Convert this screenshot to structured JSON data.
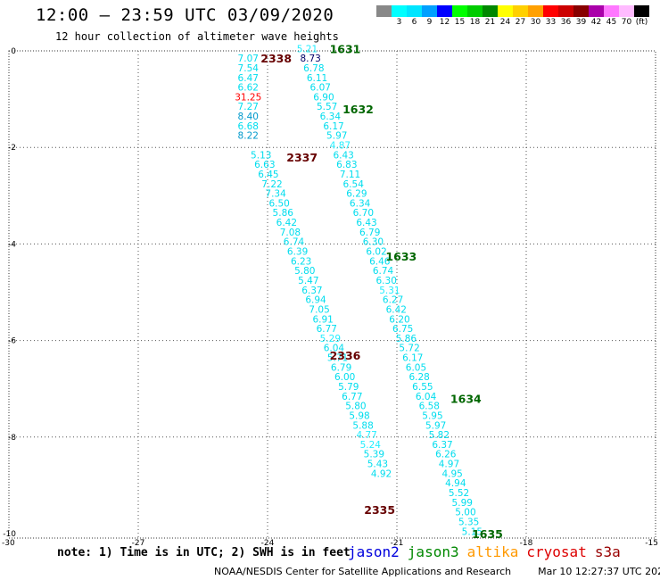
{
  "header": {
    "title": "12:00 — 23:59 UTC 03/09/2020",
    "subtitle": "12 hour collection of altimeter wave heights"
  },
  "legend": {
    "unit": "(ft)",
    "swatches": [
      {
        "color": "#888888",
        "label": ""
      },
      {
        "color": "#00ffff",
        "label": "3"
      },
      {
        "color": "#00e5ff",
        "label": "6"
      },
      {
        "color": "#00a0ff",
        "label": "9"
      },
      {
        "color": "#0000ff",
        "label": "12"
      },
      {
        "color": "#00ff00",
        "label": "15"
      },
      {
        "color": "#00cc00",
        "label": "18"
      },
      {
        "color": "#008800",
        "label": "21"
      },
      {
        "color": "#ffff00",
        "label": "24"
      },
      {
        "color": "#ffd000",
        "label": "27"
      },
      {
        "color": "#ffa000",
        "label": "30"
      },
      {
        "color": "#ff0000",
        "label": "33"
      },
      {
        "color": "#cc0000",
        "label": "36"
      },
      {
        "color": "#880000",
        "label": "39"
      },
      {
        "color": "#aa00aa",
        "label": "42"
      },
      {
        "color": "#ff77ff",
        "label": "45"
      },
      {
        "color": "#ffbbff",
        "label": "70"
      },
      {
        "color": "#000000",
        "label": ""
      }
    ]
  },
  "axes": {
    "x_ticks": [
      "-30",
      "-27",
      "-24",
      "-21",
      "-18",
      "-15"
    ],
    "y_ticks": [
      "0",
      "-2",
      "-4",
      "-6",
      "-8",
      "-10"
    ],
    "lon_range": [
      -30,
      -15
    ],
    "lat_range": [
      -10,
      0
    ]
  },
  "colors": {
    "cyan": "#00ddee",
    "light_cyan": "#22eeff",
    "dark_cyan": "#0099cc",
    "red": "#ff0000",
    "dark_red": "#660000",
    "green": "#006600",
    "navy": "#000066",
    "grid": "#555555"
  },
  "passes": [
    {
      "label": "2338",
      "color": "#660000",
      "lon": -23.8,
      "lat": -0.15
    },
    {
      "label": "1631",
      "color": "#006600",
      "lon": -22.2,
      "lat": 0.05
    },
    {
      "label": "1632",
      "color": "#006600",
      "lon": -21.9,
      "lat": -1.2
    },
    {
      "label": "2337",
      "color": "#660000",
      "lon": -23.2,
      "lat": -2.2
    },
    {
      "label": "1633",
      "color": "#006600",
      "lon": -20.9,
      "lat": -4.25
    },
    {
      "label": "2336",
      "color": "#660000",
      "lon": -22.2,
      "lat": -6.3
    },
    {
      "label": "1634",
      "color": "#006600",
      "lon": -19.4,
      "lat": -7.2
    },
    {
      "label": "2335",
      "color": "#660000",
      "lon": -21.4,
      "lat": -9.5
    },
    {
      "label": "1635",
      "color": "#006600",
      "lon": -18.9,
      "lat": -10.0
    }
  ],
  "tracks": [
    {
      "name": "2338",
      "start": [
        -24.45,
        -0.15
      ],
      "step": [
        0.0,
        -0.2
      ],
      "values": [
        {
          "v": "7.07",
          "c": "#00ddee"
        },
        {
          "v": "7.54",
          "c": "#00ddee"
        },
        {
          "v": "6.47",
          "c": "#00ddee"
        },
        {
          "v": "6.62",
          "c": "#00ddee"
        },
        {
          "v": "31.25",
          "c": "#ff0000"
        },
        {
          "v": "7.27",
          "c": "#00ddee"
        },
        {
          "v": "8.40",
          "c": "#0099cc"
        },
        {
          "v": "6.68",
          "c": "#00ddee"
        },
        {
          "v": "8.22",
          "c": "#0099cc"
        }
      ]
    },
    {
      "name": "2337",
      "start": [
        -24.15,
        -2.15
      ],
      "step": [
        0.0845,
        -0.2
      ],
      "values": [
        {
          "v": "5.13",
          "c": "#00ddee"
        },
        {
          "v": "6.63",
          "c": "#00ddee"
        },
        {
          "v": "6.45",
          "c": "#00ddee"
        },
        {
          "v": "7.22",
          "c": "#00ddee"
        },
        {
          "v": "7.34",
          "c": "#00ddee"
        },
        {
          "v": "6.50",
          "c": "#00ddee"
        },
        {
          "v": "5.86",
          "c": "#00ddee"
        },
        {
          "v": "6.42",
          "c": "#00ddee"
        },
        {
          "v": "7.08",
          "c": "#00ddee"
        },
        {
          "v": "6.74",
          "c": "#00ddee"
        },
        {
          "v": "6.39",
          "c": "#00ddee"
        },
        {
          "v": "6.23",
          "c": "#00ddee"
        },
        {
          "v": "5.80",
          "c": "#00ddee"
        },
        {
          "v": "5.47",
          "c": "#00ddee"
        },
        {
          "v": "6.37",
          "c": "#00ddee"
        },
        {
          "v": "6.94",
          "c": "#00ddee"
        },
        {
          "v": "7.05",
          "c": "#00ddee"
        },
        {
          "v": "6.91",
          "c": "#00ddee"
        },
        {
          "v": "6.77",
          "c": "#00ddee"
        },
        {
          "v": "5.29",
          "c": "#22eeff"
        },
        {
          "v": "6.04",
          "c": "#00ddee"
        },
        {
          "v": "5.71",
          "c": "#00ddee"
        },
        {
          "v": "6.79",
          "c": "#00ddee"
        },
        {
          "v": "6.00",
          "c": "#00ddee"
        },
        {
          "v": "5.79",
          "c": "#00ddee"
        },
        {
          "v": "6.77",
          "c": "#00ddee"
        },
        {
          "v": "5.80",
          "c": "#00ddee"
        },
        {
          "v": "5.98",
          "c": "#00ddee"
        },
        {
          "v": "5.88",
          "c": "#00ddee"
        },
        {
          "v": "4.77",
          "c": "#22eeff"
        },
        {
          "v": "5.24",
          "c": "#22eeff"
        },
        {
          "v": "5.39",
          "c": "#00ddee"
        },
        {
          "v": "5.43",
          "c": "#00ddee"
        },
        {
          "v": "4.92",
          "c": "#00ddee"
        }
      ]
    },
    {
      "name": "1631",
      "start": [
        -23.08,
        0.05
      ],
      "step": [
        0.0765,
        -0.2
      ],
      "values": [
        {
          "v": "5.21",
          "c": "#22eeff"
        },
        {
          "v": "8.73",
          "c": "#000066"
        },
        {
          "v": "6.78",
          "c": "#00ddee"
        },
        {
          "v": "6.11",
          "c": "#00ddee"
        },
        {
          "v": "6.07",
          "c": "#00ddee"
        },
        {
          "v": "6.90",
          "c": "#00ddee"
        },
        {
          "v": "5.57",
          "c": "#00ddee"
        },
        {
          "v": "6.34",
          "c": "#00ddee"
        },
        {
          "v": "6.17",
          "c": "#00ddee"
        },
        {
          "v": "5.97",
          "c": "#00ddee"
        },
        {
          "v": "4.87",
          "c": "#22eeff"
        },
        {
          "v": "6.43",
          "c": "#00ddee"
        },
        {
          "v": "6.83",
          "c": "#00ddee"
        },
        {
          "v": "7.11",
          "c": "#00ddee"
        },
        {
          "v": "6.54",
          "c": "#00ddee"
        },
        {
          "v": "6.29",
          "c": "#00ddee"
        },
        {
          "v": "6.34",
          "c": "#00ddee"
        },
        {
          "v": "6.70",
          "c": "#00ddee"
        },
        {
          "v": "6.43",
          "c": "#00ddee"
        },
        {
          "v": "6.79",
          "c": "#00ddee"
        },
        {
          "v": "6.30",
          "c": "#00ddee"
        },
        {
          "v": "6.02",
          "c": "#00ddee"
        },
        {
          "v": "6.46",
          "c": "#00ddee"
        },
        {
          "v": "6.74",
          "c": "#00ddee"
        },
        {
          "v": "6.30",
          "c": "#00ddee"
        },
        {
          "v": "5.31",
          "c": "#22eeff"
        },
        {
          "v": "6.27",
          "c": "#00ddee"
        },
        {
          "v": "6.42",
          "c": "#00ddee"
        },
        {
          "v": "6.20",
          "c": "#00ddee"
        },
        {
          "v": "6.75",
          "c": "#00ddee"
        },
        {
          "v": "5.86",
          "c": "#00ddee"
        },
        {
          "v": "5.72",
          "c": "#00ddee"
        },
        {
          "v": "6.17",
          "c": "#00ddee"
        },
        {
          "v": "6.05",
          "c": "#00ddee"
        },
        {
          "v": "6.28",
          "c": "#00ddee"
        },
        {
          "v": "6.55",
          "c": "#00ddee"
        },
        {
          "v": "6.04",
          "c": "#00ddee"
        },
        {
          "v": "6.58",
          "c": "#00ddee"
        },
        {
          "v": "5.95",
          "c": "#00ddee"
        },
        {
          "v": "5.97",
          "c": "#00ddee"
        },
        {
          "v": "5.82",
          "c": "#00ddee"
        },
        {
          "v": "6.37",
          "c": "#00ddee"
        },
        {
          "v": "6.26",
          "c": "#00ddee"
        },
        {
          "v": "4.97",
          "c": "#00ddee"
        },
        {
          "v": "4.95",
          "c": "#00ddee"
        },
        {
          "v": "4.94",
          "c": "#00ddee"
        },
        {
          "v": "5.52",
          "c": "#00ddee"
        },
        {
          "v": "5.99",
          "c": "#00ddee"
        },
        {
          "v": "5.00",
          "c": "#00ddee"
        },
        {
          "v": "5.35",
          "c": "#00ddee"
        },
        {
          "v": "5.15",
          "c": "#00ddee"
        }
      ]
    }
  ],
  "footer": {
    "note": "note: 1) Time is in UTC; 2) SWH is in feet",
    "satellites": [
      {
        "name": "jason2",
        "color": "#0000dd"
      },
      {
        "name": "jason3",
        "color": "#008800"
      },
      {
        "name": "altika",
        "color": "#ff9900"
      },
      {
        "name": "cryosat",
        "color": "#dd0000"
      },
      {
        "name": "s3a",
        "color": "#990000"
      }
    ],
    "credit": "NOAA/NESDIS Center for Satellite Applications and Research",
    "timestamp": "Mar 10 12:27:37 UTC 2020"
  }
}
